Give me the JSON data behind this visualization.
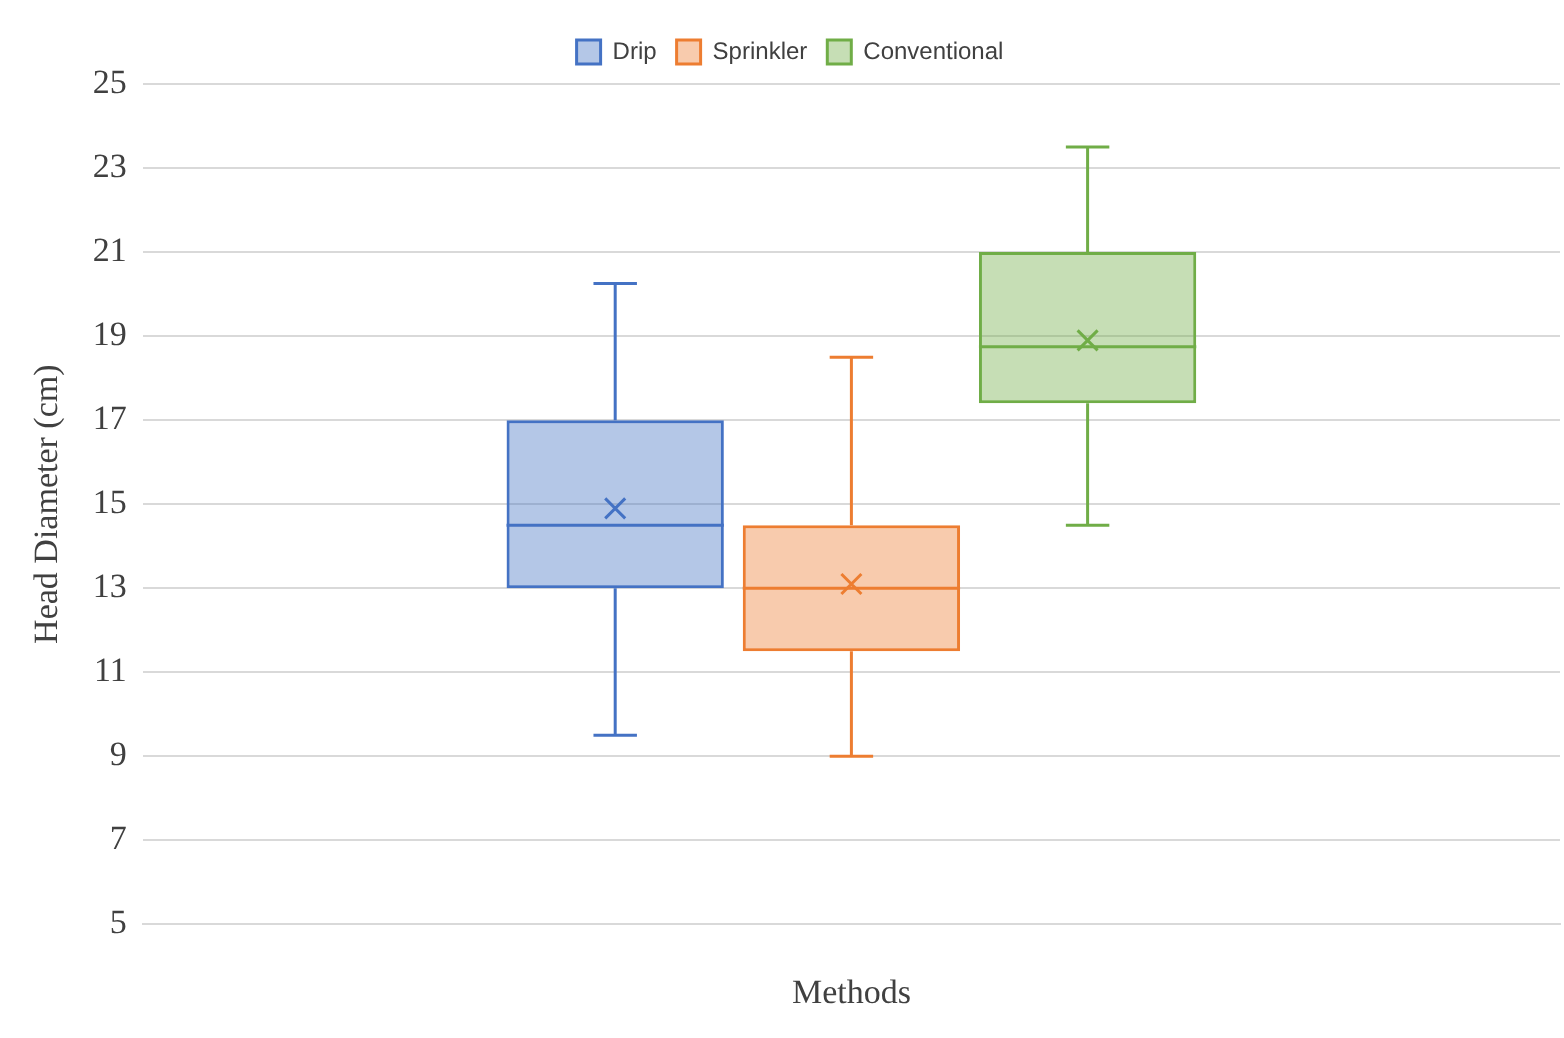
{
  "chart_data": {
    "type": "box",
    "xlabel": "Methods",
    "ylabel": "Head Diameter (cm)",
    "categories": [
      null
    ],
    "ylim": [
      5,
      25
    ],
    "yticks": [
      5,
      7,
      9,
      11,
      13,
      15,
      17,
      19,
      21,
      23,
      25
    ],
    "grid": "y",
    "legend": "top",
    "marker": "cross",
    "series": [
      {
        "name": "Drip",
        "color": "#4472c4",
        "boxes": [
          {
            "low": 9.5,
            "q1": 13,
            "median": 14.5,
            "q3": 17,
            "high": 20.25,
            "mean": 14.9
          }
        ]
      },
      {
        "name": "Sprinkler",
        "color": "#ed7d31",
        "boxes": [
          {
            "low": 9,
            "q1": 11.5,
            "median": 13,
            "q3": 14.5,
            "high": 18.5,
            "mean": 13.1
          }
        ]
      },
      {
        "name": "Conventional",
        "color": "#70ad47",
        "boxes": [
          {
            "low": 14.5,
            "q1": 17.4,
            "median": 18.75,
            "q3": 21,
            "high": 23.5,
            "mean": 18.9
          }
        ]
      }
    ]
  }
}
